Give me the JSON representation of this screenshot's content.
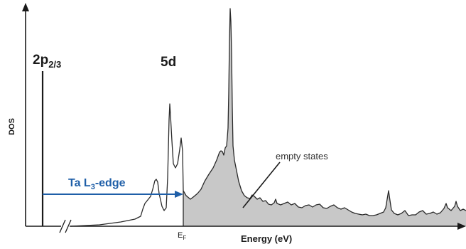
{
  "diagram": {
    "core_level_label": "2p",
    "core_level_sub": "2/3",
    "band_label": "5d",
    "y_axis_label": "DOS",
    "x_axis_label": "Energy (eV)",
    "fermi_label": "E",
    "fermi_sub": "F",
    "edge_label_prefix": "Ta L",
    "edge_label_sub": "3",
    "edge_label_suffix": "-edge",
    "empty_states_label": "empty states"
  },
  "colors": {
    "axis": "#1a1a1a",
    "curve": "#2a2a2a",
    "fill": "#c8c8c8",
    "arrow": "#1f5fa8",
    "edge_label": "#1f5fa8",
    "text": "#1a1a1a"
  }
}
